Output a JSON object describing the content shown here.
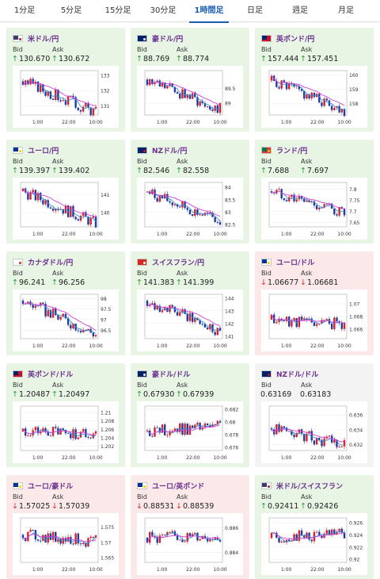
{
  "tabs": [
    {
      "label": "1分足",
      "active": false
    },
    {
      "label": "5分足",
      "active": false
    },
    {
      "label": "15分足",
      "active": false
    },
    {
      "label": "30分足",
      "active": false
    },
    {
      "label": "1時間足",
      "active": true
    },
    {
      "label": "日足",
      "active": false
    },
    {
      "label": "週足",
      "active": false
    },
    {
      "label": "月足",
      "active": false
    }
  ],
  "labels": {
    "bid": "Bid",
    "ask": "Ask"
  },
  "pairs": [
    {
      "name": "米ドル/円",
      "flag": "us",
      "direction": "up",
      "bid": "130.670",
      "ask": "130.672",
      "chart_data": {
        "type": "candlestick",
        "x_ticks": [
          "1:00",
          "22:00",
          "10:00"
        ],
        "y_ticks": [
          "133",
          "132",
          "131"
        ],
        "ylim": [
          130.4,
          133.3
        ],
        "trend": [
          132.6,
          130.6
        ]
      }
    },
    {
      "name": "豪ドル/円",
      "flag": "au",
      "direction": "up",
      "bid": "88.769",
      "ask": "88.774",
      "chart_data": {
        "type": "candlestick",
        "x_ticks": [
          "1:00",
          "22:00",
          "10:00"
        ],
        "y_ticks": [
          "89.5",
          "89"
        ],
        "ylim": [
          88.6,
          90.1
        ],
        "trend": [
          89.8,
          88.8
        ]
      }
    },
    {
      "name": "英ポンド/円",
      "flag": "gb",
      "direction": "up",
      "bid": "157.444",
      "ask": "157.451",
      "chart_data": {
        "type": "candlestick",
        "x_ticks": [
          "1:00",
          "22:00",
          "10:00"
        ],
        "y_ticks": [
          "160",
          "159",
          "158"
        ],
        "ylim": [
          157.2,
          160.3
        ],
        "trend": [
          159.6,
          157.5
        ]
      }
    },
    {
      "name": "ユーロ/円",
      "flag": "eu",
      "direction": "up",
      "bid": "139.397",
      "ask": "139.402",
      "chart_data": {
        "type": "candlestick",
        "x_ticks": [
          "1:00",
          "22:00",
          "10:00"
        ],
        "y_ticks": [
          "141",
          "140"
        ],
        "ylim": [
          139.2,
          141.7
        ],
        "trend": [
          141.2,
          139.4
        ]
      }
    },
    {
      "name": "NZドル/円",
      "flag": "nz",
      "direction": "up",
      "bid": "82.546",
      "ask": "82.558",
      "chart_data": {
        "type": "candlestick",
        "x_ticks": [
          "1:00",
          "22:00",
          "10:00"
        ],
        "y_ticks": [
          "84",
          "83.5",
          "83",
          "82.5"
        ],
        "ylim": [
          82.4,
          84.2
        ],
        "trend": [
          83.8,
          82.6
        ]
      }
    },
    {
      "name": "ランド/円",
      "flag": "za",
      "direction": "up",
      "bid": "7.688",
      "ask": "7.697",
      "chart_data": {
        "type": "candlestick",
        "x_ticks": [
          "1:00",
          "22:00",
          "10:00"
        ],
        "y_ticks": [
          "7.8",
          "7.75",
          "7.7",
          "7.65"
        ],
        "ylim": [
          7.63,
          7.83
        ],
        "trend": [
          7.79,
          7.69
        ]
      }
    },
    {
      "name": "カナダドル/円",
      "flag": "ca",
      "direction": "up",
      "bid": "96.241",
      "ask": "96.256",
      "chart_data": {
        "type": "candlestick",
        "x_ticks": [
          "1:00",
          "22:00",
          "10:00"
        ],
        "y_ticks": [
          "98",
          "97.5",
          "97",
          "96.5"
        ],
        "ylim": [
          96.1,
          98.2
        ],
        "trend": [
          97.9,
          96.3
        ]
      }
    },
    {
      "name": "スイスフラン/円",
      "flag": "ch",
      "direction": "up",
      "bid": "141.383",
      "ask": "141.399",
      "chart_data": {
        "type": "candlestick",
        "x_ticks": [
          "1:00",
          "22:00",
          "10:00"
        ],
        "y_ticks": [
          "144",
          "143",
          "142",
          "141"
        ],
        "ylim": [
          140.8,
          144.3
        ],
        "trend": [
          143.8,
          141.4
        ]
      }
    },
    {
      "name": "ユーロ/ドル",
      "flag": "eu",
      "direction": "down",
      "bid": "1.06677",
      "ask": "1.06681",
      "chart_data": {
        "type": "candlestick",
        "x_ticks": [
          "1:00",
          "22:00",
          "10:00"
        ],
        "y_ticks": [
          "1.07",
          "1.068",
          "1.066"
        ],
        "ylim": [
          1.0645,
          1.0715
        ],
        "trend": [
          1.0675,
          1.0668
        ]
      }
    },
    {
      "name": "英ポンド/ドル",
      "flag": "gb",
      "direction": "up",
      "bid": "1.20487",
      "ask": "1.20497",
      "chart_data": {
        "type": "candlestick",
        "x_ticks": [
          "1:00",
          "22:00",
          "10:00"
        ],
        "y_ticks": [
          "1.21",
          "1.208",
          "1.206",
          "1.204",
          "1.202"
        ],
        "ylim": [
          1.201,
          1.2115
        ],
        "trend": [
          1.2055,
          1.2049
        ]
      }
    },
    {
      "name": "豪ドル/ドル",
      "flag": "au",
      "direction": "up",
      "bid": "0.67930",
      "ask": "0.67939",
      "chart_data": {
        "type": "candlestick",
        "x_ticks": [
          "1:00",
          "22:00",
          "10:00"
        ],
        "y_ticks": [
          "0.682",
          "0.68",
          "0.678",
          "0.676"
        ],
        "ylim": [
          0.6755,
          0.6825
        ],
        "trend": [
          0.6785,
          0.6793
        ]
      }
    },
    {
      "name": "NZドル/ドル",
      "flag": "nz",
      "direction": "flat",
      "bid": "0.63169",
      "ask": "0.63183",
      "chart_data": {
        "type": "candlestick",
        "x_ticks": [
          "1:00",
          "22:00",
          "10:00"
        ],
        "y_ticks": [
          "0.636",
          "0.634",
          "0.632"
        ],
        "ylim": [
          0.6312,
          0.6372
        ],
        "trend": [
          0.6342,
          0.6319
        ]
      }
    },
    {
      "name": "ユーロ/豪ドル",
      "flag": "eu",
      "direction": "down",
      "bid": "1.57025",
      "ask": "1.57039",
      "chart_data": {
        "type": "candlestick",
        "x_ticks": [
          "1:00",
          "22:00",
          "10:00"
        ],
        "y_ticks": [
          "1.575",
          "1.57",
          "1.565"
        ],
        "ylim": [
          1.5635,
          1.578
        ],
        "trend": [
          1.5725,
          1.5703
        ]
      }
    },
    {
      "name": "ユーロ/英ポンド",
      "flag": "eu",
      "direction": "down",
      "bid": "0.88531",
      "ask": "0.88539",
      "chart_data": {
        "type": "candlestick",
        "x_ticks": [
          "1:00",
          "22:00",
          "10:00"
        ],
        "y_ticks": [
          "0.886",
          "0.884"
        ],
        "ylim": [
          0.8832,
          0.8868
        ],
        "trend": [
          0.8852,
          0.8853
        ]
      }
    },
    {
      "name": "米ドル/スイスフラン",
      "flag": "us",
      "direction": "up",
      "bid": "0.92411",
      "ask": "0.92426",
      "chart_data": {
        "type": "candlestick",
        "x_ticks": [
          "1:00",
          "22:00",
          "10:00"
        ],
        "y_ticks": [
          "0.926",
          "0.924",
          "0.922",
          "0.92"
        ],
        "ylim": [
          0.9195,
          0.9268
        ],
        "trend": [
          0.9235,
          0.9241
        ]
      }
    }
  ],
  "colors": {
    "up_arrow": "#2a9a3a",
    "down_arrow": "#d22c2c",
    "candle_up": "#d6202a",
    "candle_down": "#1f3c9c",
    "ma_short": "#2e8bd4",
    "ma_long": "#d23fd6",
    "card_up_bg": "#e8f4e4",
    "card_down_bg": "#fbe9ea",
    "card_flat_bg": "#f3f3f3"
  }
}
